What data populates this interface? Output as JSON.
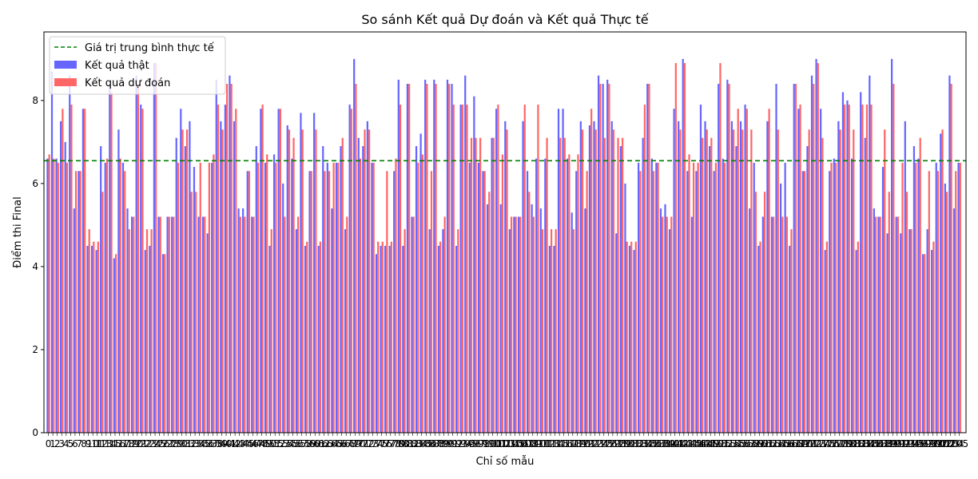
{
  "chart_data": {
    "type": "bar",
    "title": "So sánh Kết quả Dự đoán và Kết quả Thực tế",
    "xlabel": "Chỉ số mẫu",
    "ylabel": "Điểm thi Final",
    "ylim": [
      0,
      9.65
    ],
    "xlim": [
      -1.0,
      206.5
    ],
    "yticks": [
      0,
      2,
      4,
      6,
      8
    ],
    "xticks_visible_start": [
      0,
      1,
      2,
      3,
      4,
      5,
      6,
      7,
      8,
      9,
      10,
      11,
      12,
      13,
      14,
      15,
      16,
      17,
      18
    ],
    "x_tick_count": 206,
    "legend_position": "top-left",
    "mean_line": {
      "label": "Giá trị trung bình thực tế",
      "value": 6.55,
      "color": "#008000"
    },
    "series": [
      {
        "name": "Kết quả thật",
        "color": "#6666ff",
        "values": [
          6.6,
          8.7,
          6.6,
          7.5,
          7.0,
          8.6,
          5.4,
          6.3,
          7.8,
          4.5,
          4.5,
          4.4,
          6.9,
          6.5,
          8.4,
          4.2,
          7.3,
          6.5,
          5.4,
          5.2,
          8.6,
          7.9,
          4.4,
          4.5,
          8.9,
          5.2,
          4.3,
          5.2,
          5.2,
          7.1,
          7.8,
          6.9,
          7.5,
          6.4,
          5.2,
          5.2,
          4.8,
          6.5,
          8.5,
          7.5,
          7.9,
          8.6,
          7.5,
          5.4,
          5.4,
          6.3,
          5.2,
          6.9,
          7.8,
          6.5,
          4.5,
          6.7,
          7.8,
          6.0,
          7.4,
          6.6,
          4.9,
          7.7,
          4.5,
          6.3,
          7.7,
          4.5,
          6.9,
          6.5,
          5.4,
          6.5,
          6.9,
          4.9,
          7.9,
          9.0,
          7.1,
          6.9,
          7.5,
          6.5,
          4.3,
          4.5,
          4.5,
          4.5,
          6.3,
          8.5,
          4.5,
          8.4,
          5.2,
          6.9,
          7.2,
          8.5,
          4.9,
          8.5,
          4.5,
          4.9,
          8.5,
          8.4,
          4.5,
          7.9,
          8.6,
          6.5,
          8.1,
          6.5,
          6.3,
          5.5,
          7.1,
          7.8,
          5.5,
          7.5,
          4.9,
          5.2,
          5.2,
          7.5,
          6.3,
          5.5,
          6.6,
          5.4,
          6.6,
          4.5,
          4.5,
          7.8,
          7.8,
          6.6,
          5.3,
          6.3,
          7.5,
          5.4,
          7.4,
          7.5,
          8.6,
          8.4,
          8.5,
          7.5,
          4.8,
          6.9,
          6.0,
          4.5,
          4.4,
          6.5,
          7.1,
          8.4,
          6.6,
          6.5,
          5.4,
          5.5,
          4.9,
          7.8,
          7.5,
          9.0,
          6.3,
          5.2,
          6.3,
          7.9,
          7.5,
          6.9,
          6.3,
          8.4,
          6.6,
          8.5,
          7.5,
          6.9,
          7.5,
          7.9,
          5.4,
          6.5,
          4.5,
          5.2,
          7.5,
          5.2,
          8.4,
          6.0,
          6.5,
          4.5,
          8.4,
          7.8,
          6.3,
          6.9,
          8.6,
          9.0,
          7.8,
          4.4,
          6.3,
          6.6,
          7.5,
          8.2,
          8.0,
          6.6,
          4.4,
          8.2,
          7.1,
          8.6,
          5.4,
          5.2,
          6.4,
          4.8,
          9.0,
          5.2,
          4.8,
          7.5,
          4.9,
          6.9,
          6.6,
          4.3,
          4.9,
          4.4,
          6.5,
          7.2,
          6.0,
          8.6,
          5.4,
          6.5
        ],
        "values_note_removed": true
      },
      {
        "name": "Kết quả dự đoán",
        "color": "#ff6666",
        "values": [
          6.7,
          6.6,
          6.5,
          7.8,
          6.5,
          7.9,
          6.3,
          6.3,
          7.8,
          4.9,
          4.6,
          4.6,
          5.8,
          6.6,
          8.2,
          4.3,
          6.6,
          6.3,
          4.9,
          5.2,
          8.4,
          7.8,
          4.9,
          4.9,
          8.9,
          5.2,
          4.3,
          5.2,
          5.2,
          6.5,
          7.3,
          7.3,
          5.8,
          5.8,
          6.5,
          5.2,
          6.5,
          6.7,
          7.9,
          7.3,
          8.4,
          8.4,
          7.8,
          5.2,
          5.2,
          6.3,
          5.2,
          6.5,
          7.9,
          6.7,
          4.9,
          6.5,
          7.8,
          5.2,
          7.3,
          7.1,
          5.2,
          7.3,
          4.6,
          6.3,
          7.3,
          4.6,
          6.3,
          6.3,
          6.5,
          6.5,
          7.1,
          5.2,
          7.8,
          8.4,
          6.6,
          7.3,
          7.3,
          6.5,
          4.6,
          4.6,
          6.3,
          4.6,
          6.6,
          7.9,
          4.9,
          8.4,
          5.2,
          6.5,
          6.7,
          8.4,
          6.3,
          8.4,
          4.6,
          5.2,
          8.4,
          7.9,
          4.9,
          7.9,
          7.9,
          7.1,
          7.1,
          7.1,
          6.3,
          5.8,
          7.1,
          7.9,
          6.7,
          7.3,
          5.2,
          5.2,
          5.2,
          7.9,
          5.8,
          5.2,
          7.9,
          4.9,
          7.1,
          4.9,
          4.9,
          7.1,
          7.1,
          6.7,
          4.9,
          6.7,
          7.3,
          6.3,
          7.8,
          7.3,
          8.4,
          7.1,
          8.4,
          7.3,
          7.1,
          7.1,
          4.6,
          4.6,
          4.6,
          6.3,
          7.9,
          8.4,
          6.3,
          6.5,
          5.2,
          5.2,
          5.2,
          8.9,
          7.3,
          8.9,
          6.7,
          6.5,
          6.5,
          7.1,
          7.3,
          7.1,
          6.5,
          8.9,
          6.5,
          8.4,
          7.3,
          7.8,
          7.3,
          7.8,
          7.3,
          5.8,
          4.6,
          5.8,
          7.8,
          5.2,
          7.3,
          5.2,
          5.2,
          4.9,
          8.4,
          7.9,
          6.3,
          7.3,
          8.4,
          8.9,
          7.1,
          4.6,
          6.5,
          6.5,
          7.3,
          7.9,
          7.9,
          7.3,
          4.6,
          7.9,
          7.9,
          7.9,
          5.2,
          5.2,
          7.3,
          5.8,
          8.4,
          5.2,
          6.5,
          5.8,
          4.9,
          6.5,
          7.1,
          4.3,
          6.3,
          4.6,
          6.3,
          7.3,
          5.8,
          8.4,
          6.3,
          6.5
        ]
      }
    ]
  }
}
